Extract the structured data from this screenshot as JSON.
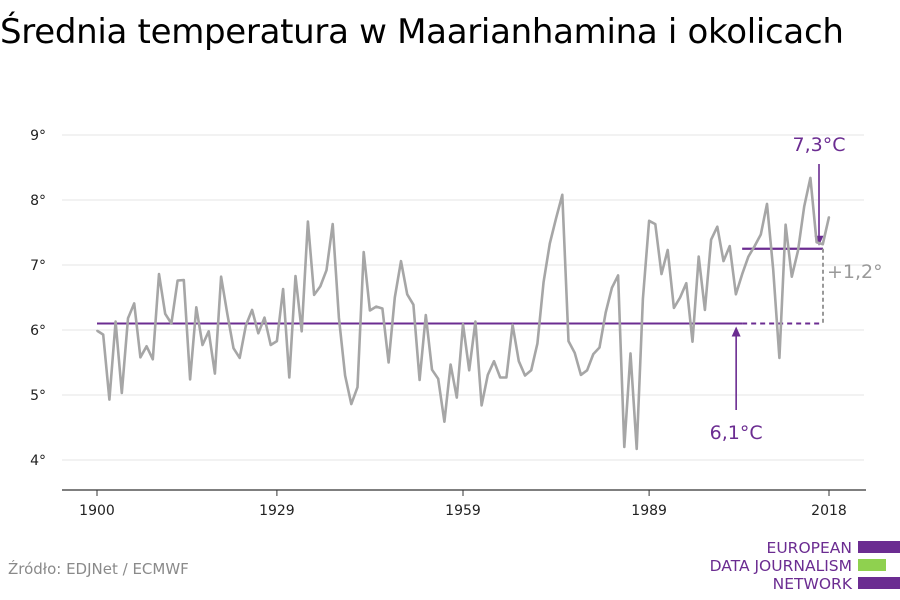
{
  "title": "Średnia temperatura w Maarianhamina i okolicach",
  "source": "Źródło: EDJNet / ECMWF",
  "logo": {
    "lines": [
      "EUROPEAN",
      "DATA JOURNALISM",
      "NETWORK"
    ]
  },
  "colors": {
    "series": "#a6a6a6",
    "accent": "#6b2c91",
    "delta": "#999999",
    "grid": "#e6e6e6",
    "logo_purple": "#6b2c91",
    "logo_green": "#8fd14f"
  },
  "chart_data": {
    "type": "line",
    "title": "Średnia temperatura w Maarianhamina i okolicach",
    "xlabel": "",
    "ylabel": "",
    "x_ticks": [
      1900,
      1929,
      1959,
      1989,
      2018
    ],
    "y_ticks": [
      4,
      5,
      6,
      7,
      8,
      9
    ],
    "y_tick_labels": [
      "4°",
      "5°",
      "6°",
      "7°",
      "8°",
      "9°"
    ],
    "xlim": [
      1900,
      2018
    ],
    "ylim": [
      4,
      9
    ],
    "grid": true,
    "x": [
      1900,
      1901,
      1902,
      1903,
      1904,
      1905,
      1906,
      1907,
      1908,
      1909,
      1910,
      1911,
      1912,
      1913,
      1914,
      1915,
      1916,
      1917,
      1918,
      1919,
      1920,
      1921,
      1922,
      1923,
      1924,
      1925,
      1926,
      1927,
      1928,
      1929,
      1930,
      1931,
      1932,
      1933,
      1934,
      1935,
      1936,
      1937,
      1938,
      1939,
      1940,
      1941,
      1942,
      1943,
      1944,
      1945,
      1946,
      1947,
      1948,
      1949,
      1950,
      1951,
      1952,
      1953,
      1954,
      1955,
      1956,
      1957,
      1958,
      1959,
      1960,
      1961,
      1962,
      1963,
      1964,
      1965,
      1966,
      1967,
      1968,
      1969,
      1970,
      1971,
      1972,
      1973,
      1974,
      1975,
      1976,
      1977,
      1978,
      1979,
      1980,
      1981,
      1982,
      1983,
      1984,
      1985,
      1986,
      1987,
      1988,
      1989,
      1990,
      1991,
      1992,
      1993,
      1994,
      1995,
      1996,
      1997,
      1998,
      1999,
      2000,
      2001,
      2002,
      2003,
      2004,
      2005,
      2006,
      2007,
      2008,
      2009,
      2010,
      2011,
      2012,
      2013,
      2014,
      2015,
      2016,
      2017,
      2018
    ],
    "series": [
      {
        "name": "",
        "values": [
          5.99,
          5.93,
          4.93,
          6.13,
          5.03,
          6.18,
          6.41,
          5.58,
          5.75,
          5.55,
          6.86,
          6.25,
          6.1,
          6.76,
          6.77,
          5.24,
          6.35,
          5.77,
          5.98,
          5.33,
          6.82,
          6.25,
          5.72,
          5.57,
          6.07,
          6.31,
          5.95,
          6.19,
          5.77,
          5.83,
          6.63,
          5.27,
          6.83,
          5.98,
          7.67,
          6.54,
          6.67,
          6.92,
          7.63,
          6.19,
          5.3,
          4.86,
          5.12,
          7.2,
          6.3,
          6.36,
          6.33,
          5.5,
          6.5,
          7.06,
          6.55,
          6.39,
          5.23,
          6.23,
          5.39,
          5.25,
          4.59,
          5.47,
          4.96,
          6.09,
          5.38,
          6.13,
          4.84,
          5.31,
          5.52,
          5.27,
          5.27,
          6.08,
          5.52,
          5.3,
          5.38,
          5.79,
          6.74,
          7.33,
          7.72,
          8.08,
          5.83,
          5.65,
          5.31,
          5.38,
          5.63,
          5.73,
          6.27,
          6.65,
          6.84,
          4.2,
          5.64,
          4.17,
          6.48,
          7.68,
          7.63,
          6.86,
          7.23,
          6.34,
          6.5,
          6.72,
          5.82,
          7.13,
          6.31,
          7.39,
          7.59,
          7.06,
          7.29,
          6.55,
          6.86,
          7.13,
          7.29,
          7.47,
          7.94,
          6.93,
          5.57,
          7.62,
          6.82,
          7.22,
          7.9,
          8.34,
          7.35,
          7.32,
          7.74
        ]
      }
    ],
    "annotations": [
      {
        "label": "6,1°C",
        "value": 6.1,
        "from": 1900,
        "to": 2004
      },
      {
        "label": "7,3°C",
        "value": 7.25,
        "from": 2004,
        "to": 2018
      },
      {
        "label": "+1,2°",
        "value": 1.2
      }
    ]
  }
}
